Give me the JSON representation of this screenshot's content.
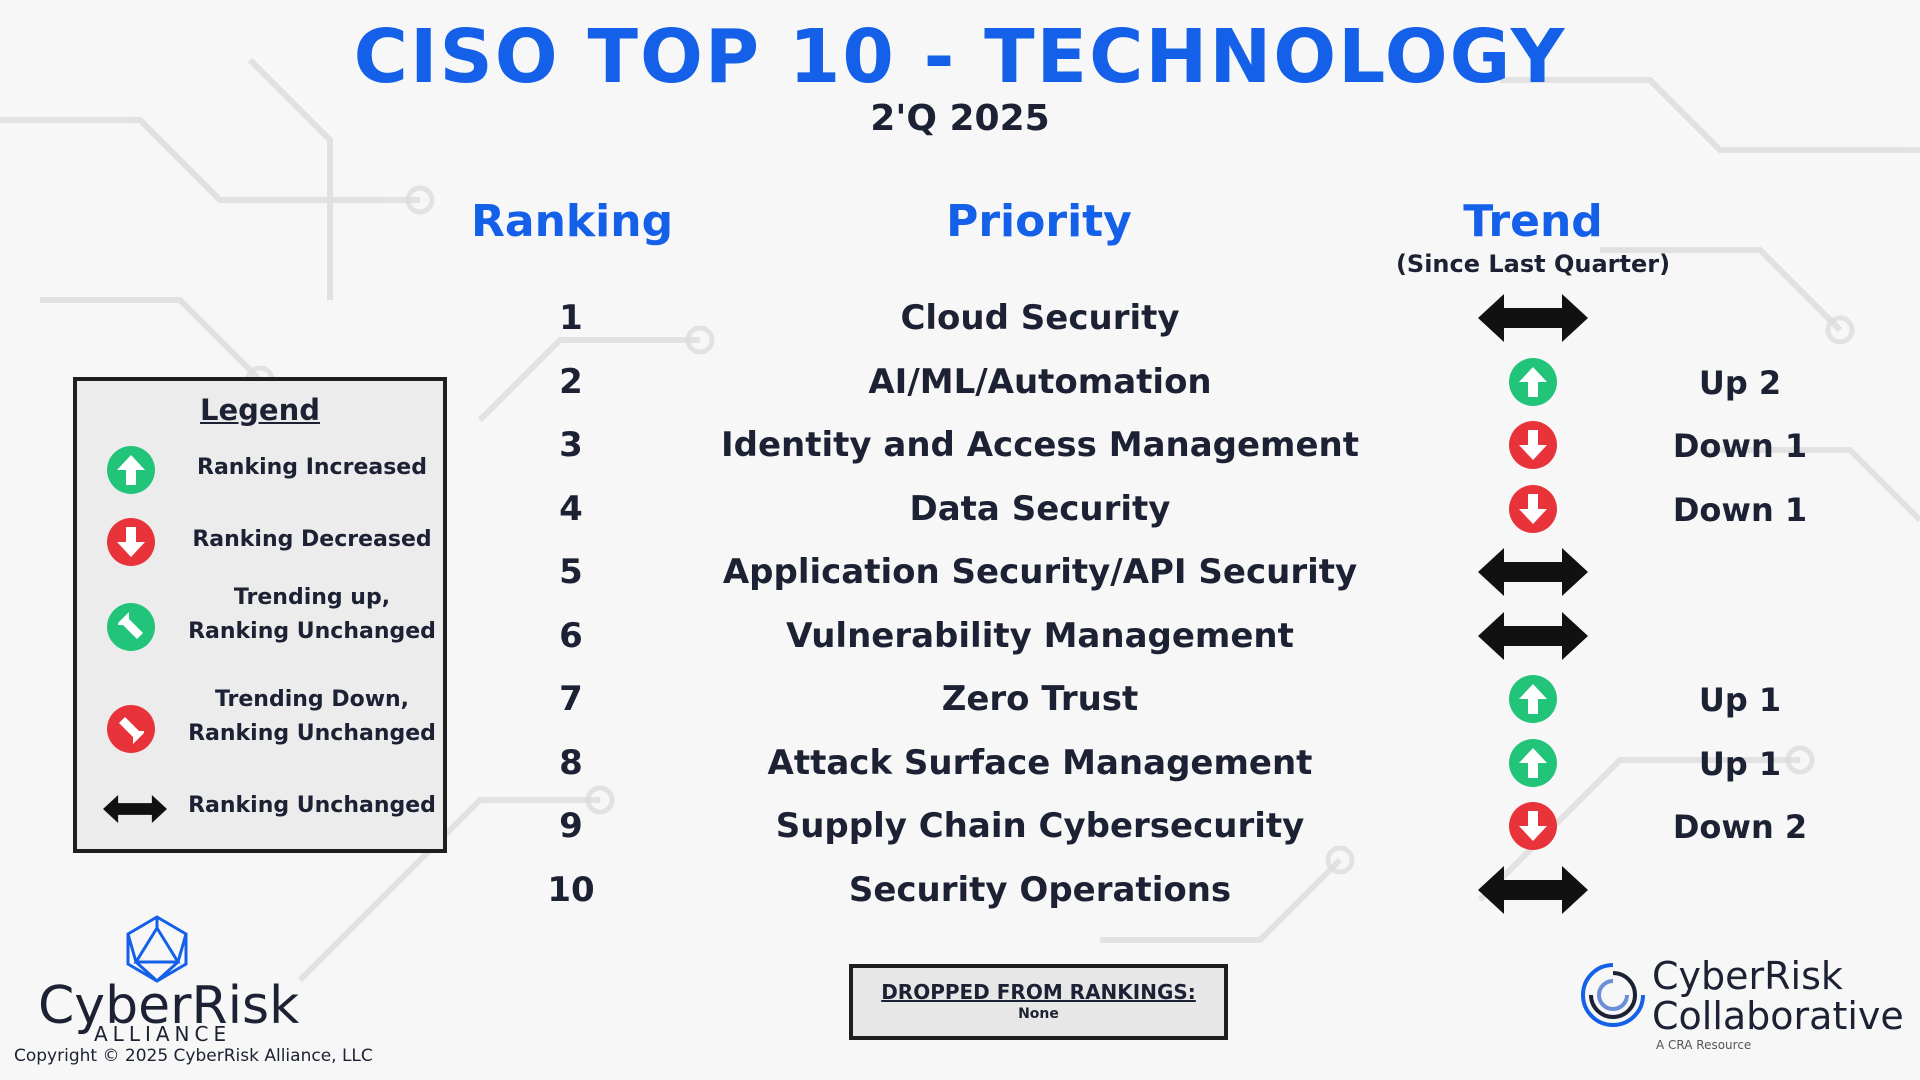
{
  "title": "CISO TOP 10 - TECHNOLOGY",
  "subtitle": "2'Q 2025",
  "headers": {
    "ranking": "Ranking",
    "priority": "Priority",
    "trend": "Trend",
    "trend_sub": "(Since Last Quarter)"
  },
  "rows": [
    {
      "rank": "1",
      "priority": "Cloud Security",
      "trend_icon": "double-arrow-icon",
      "change": ""
    },
    {
      "rank": "2",
      "priority": "AI/ML/Automation",
      "trend_icon": "arrow-up-circle-icon",
      "change": "Up 2"
    },
    {
      "rank": "3",
      "priority": "Identity and Access Management",
      "trend_icon": "arrow-down-circle-icon",
      "change": "Down 1"
    },
    {
      "rank": "4",
      "priority": "Data Security",
      "trend_icon": "arrow-down-circle-icon",
      "change": "Down 1"
    },
    {
      "rank": "5",
      "priority": "Application Security/API Security",
      "trend_icon": "double-arrow-icon",
      "change": ""
    },
    {
      "rank": "6",
      "priority": "Vulnerability Management",
      "trend_icon": "double-arrow-icon",
      "change": ""
    },
    {
      "rank": "7",
      "priority": "Zero Trust",
      "trend_icon": "arrow-up-circle-icon",
      "change": "Up 1"
    },
    {
      "rank": "8",
      "priority": "Attack Surface Management",
      "trend_icon": "arrow-up-circle-icon",
      "change": "Up 1"
    },
    {
      "rank": "9",
      "priority": "Supply Chain Cybersecurity",
      "trend_icon": "arrow-down-circle-icon",
      "change": "Down 2"
    },
    {
      "rank": "10",
      "priority": "Security Operations",
      "trend_icon": "double-arrow-icon",
      "change": ""
    }
  ],
  "legend": {
    "title": "Legend",
    "items": [
      {
        "icon": "arrow-up-circle-icon",
        "label": "Ranking Increased"
      },
      {
        "icon": "arrow-down-circle-icon",
        "label": "Ranking Decreased"
      },
      {
        "icon": "arrow-up-left-circle-icon",
        "label_1": "Trending up,",
        "label_2": "Ranking Unchanged"
      },
      {
        "icon": "arrow-down-right-circle-icon",
        "label_1": "Trending Down,",
        "label_2": "Ranking Unchanged"
      },
      {
        "icon": "double-arrow-icon",
        "label": "Ranking Unchanged"
      }
    ]
  },
  "dropped": {
    "title": "DROPPED FROM RANKINGS:",
    "value": "None"
  },
  "logos": {
    "left_name": "CyberRisk",
    "left_sub": "ALLIANCE",
    "right_line1": "CyberRisk",
    "right_line2": "Collaborative",
    "right_tag": "A CRA Resource"
  },
  "copyright": "Copyright © 2025 CyberRisk Alliance, LLC",
  "colors": {
    "title_blue": "#1560e8",
    "up_green": "#22c47a",
    "down_red": "#e8333a",
    "dark": "#1c2233"
  }
}
